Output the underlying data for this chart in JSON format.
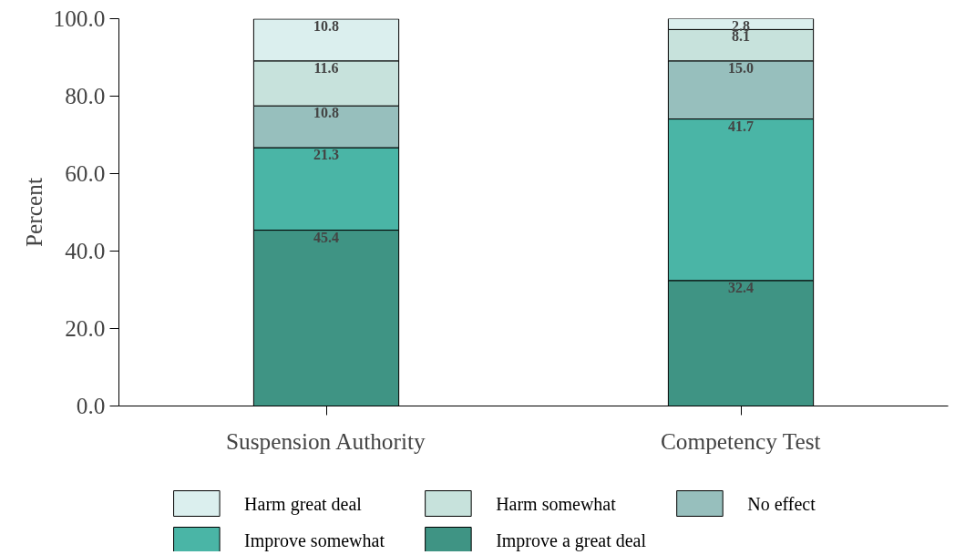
{
  "chart_data": {
    "type": "bar",
    "stacked": true,
    "ylabel": "Percent",
    "categories": [
      "Suspension Authority",
      "Competency Test"
    ],
    "series": [
      {
        "name": "Improve a great deal",
        "color": "#3f9484",
        "values": [
          45.4,
          32.4
        ],
        "value_labels": [
          "45.4",
          "32.4"
        ]
      },
      {
        "name": "Improve somewhat",
        "color": "#4ab5a6",
        "values": [
          21.3,
          41.7
        ],
        "value_labels": [
          "21.3",
          "41.7"
        ]
      },
      {
        "name": "No effect",
        "color": "#97bfbd",
        "values": [
          10.8,
          15.0
        ],
        "value_labels": [
          "10.8",
          "15.0"
        ]
      },
      {
        "name": "Harm somewhat",
        "color": "#c7e2dc",
        "values": [
          11.6,
          8.1
        ],
        "value_labels": [
          "11.6",
          "8.1"
        ]
      },
      {
        "name": "Harm great deal",
        "color": "#dbefee",
        "values": [
          10.8,
          2.8
        ],
        "value_labels": [
          "10.8",
          "2.8"
        ]
      }
    ],
    "ylim": [
      0,
      100
    ],
    "yticks": [
      {
        "value": 0,
        "label": "0.0"
      },
      {
        "value": 20,
        "label": "20.0"
      },
      {
        "value": 40,
        "label": "40.0"
      },
      {
        "value": 60,
        "label": "60.0"
      },
      {
        "value": 80,
        "label": "80.0"
      },
      {
        "value": 100,
        "label": "100.0"
      }
    ],
    "grid": false,
    "legend": "bottom"
  }
}
